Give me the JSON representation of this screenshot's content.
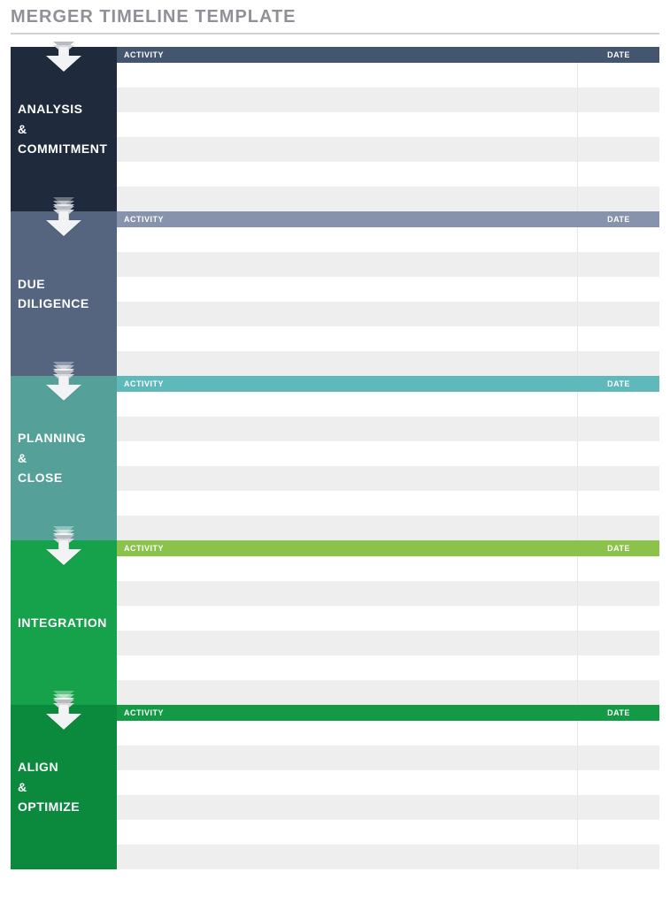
{
  "title": "MERGER TIMELINE TEMPLATE",
  "columns": {
    "activity": "ACTIVITY",
    "date": "DATE"
  },
  "row_colors": {
    "odd": "#ffffff",
    "even": "#eeeeee"
  },
  "rows_per_phase": 6,
  "phases": [
    {
      "id": "analysis-commitment",
      "label": "ANALYSIS\n&\nCOMMITMENT",
      "panel_color": "#1f2a3c",
      "header_color": "#44566f",
      "show_bottom_arrow": true
    },
    {
      "id": "due-diligence",
      "label": "DUE\nDILIGENCE",
      "panel_color": "#55657f",
      "header_color": "#8793ac",
      "show_bottom_arrow": true
    },
    {
      "id": "planning-close",
      "label": "PLANNING\n&\nCLOSE",
      "panel_color": "#55a199",
      "header_color": "#5fb9bb",
      "show_bottom_arrow": true
    },
    {
      "id": "integration",
      "label": "INTEGRATION",
      "panel_color": "#15a24a",
      "header_color": "#8bc34a",
      "show_bottom_arrow": true
    },
    {
      "id": "align-optimize",
      "label": "ALIGN\n&\nOPTIMIZE",
      "panel_color": "#0b8a3e",
      "header_color": "#149a47",
      "show_bottom_arrow": false
    }
  ]
}
